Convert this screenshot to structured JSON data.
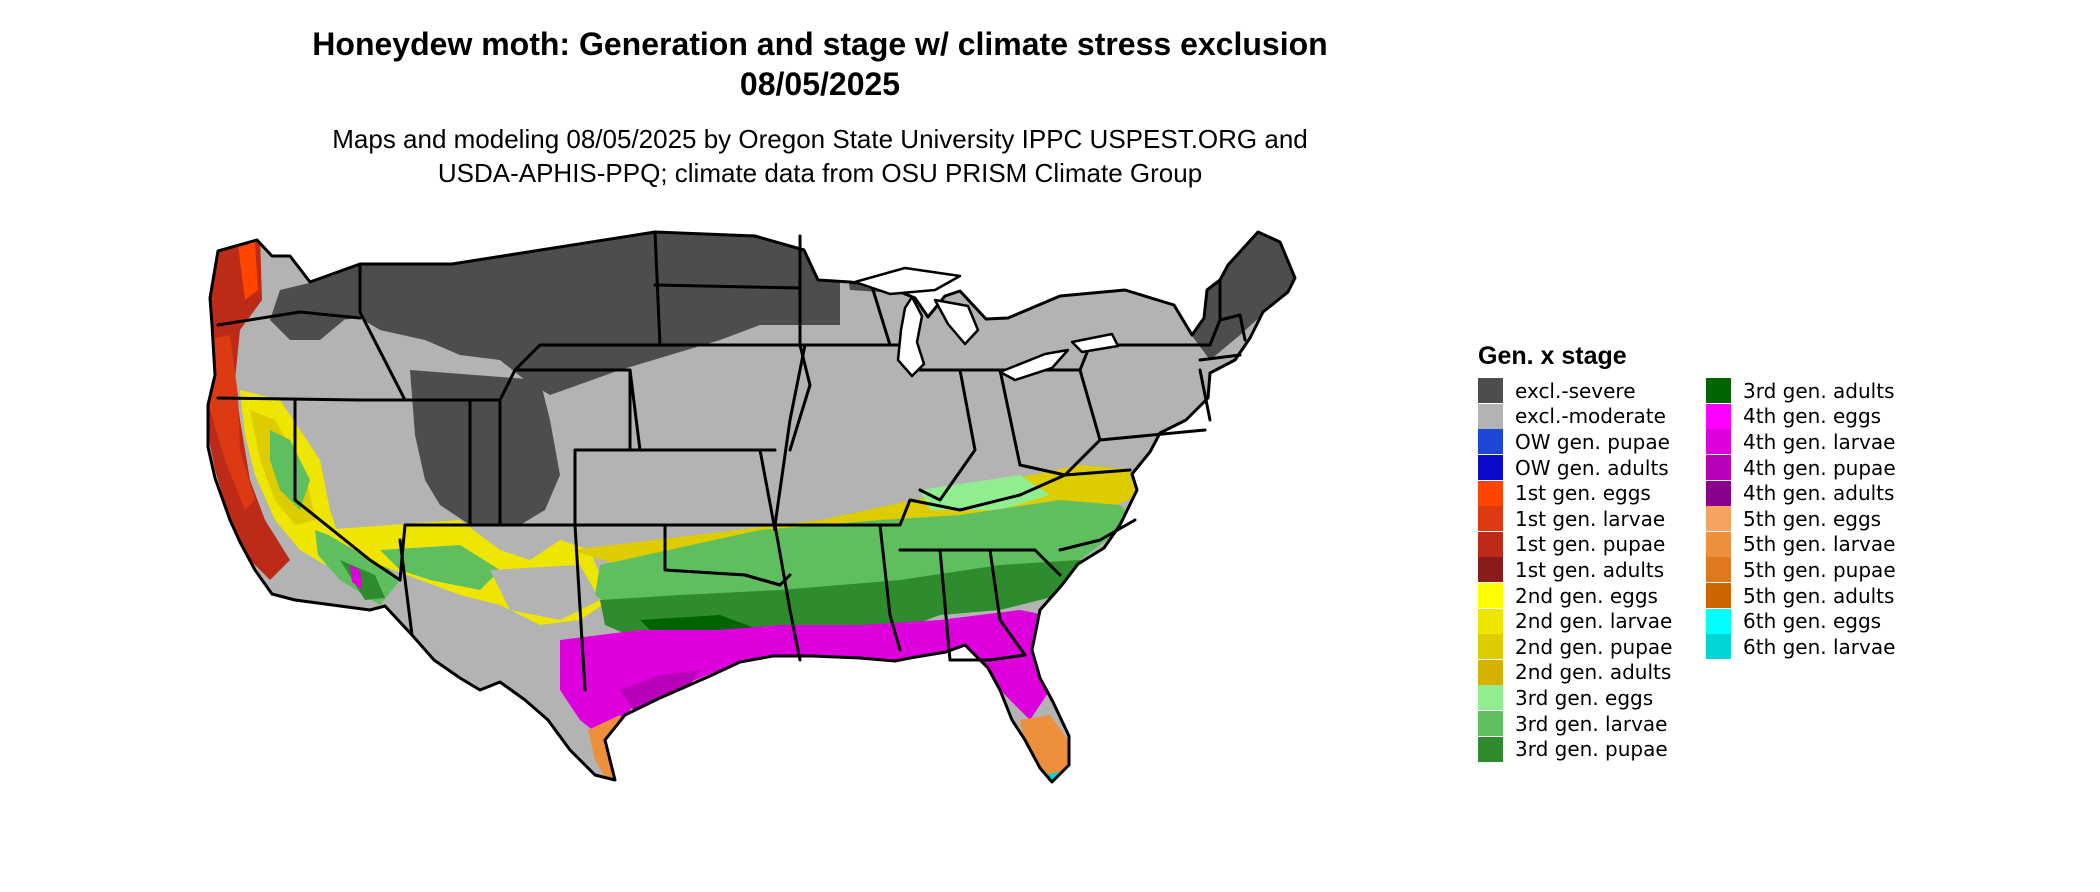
{
  "header": {
    "title_line1": "Honeydew moth: Generation and stage w/ climate stress exclusion",
    "title_line2": "08/05/2025",
    "subtitle_line1": "Maps and modeling 08/05/2025 by Oregon State University IPPC USPEST.ORG and",
    "subtitle_line2": "USDA-APHIS-PPQ; climate data from OSU PRISM Climate Group"
  },
  "legend": {
    "title": "Gen. x stage",
    "items": [
      {
        "label": "excl.-severe",
        "color": "#4d4d4d"
      },
      {
        "label": "excl.-moderate",
        "color": "#b3b3b3"
      },
      {
        "label": "OW gen. pupae",
        "color": "#1f47d6"
      },
      {
        "label": "OW gen. adults",
        "color": "#0a0ac8"
      },
      {
        "label": "1st gen. eggs",
        "color": "#ff4500"
      },
      {
        "label": "1st gen. larvae",
        "color": "#dc3a12"
      },
      {
        "label": "1st gen. pupae",
        "color": "#bd2a18"
      },
      {
        "label": "1st gen. adults",
        "color": "#8b1a1a"
      },
      {
        "label": "2nd gen. eggs",
        "color": "#ffff00"
      },
      {
        "label": "2nd gen. larvae",
        "color": "#eee600"
      },
      {
        "label": "2nd gen. pupae",
        "color": "#ddcc00"
      },
      {
        "label": "2nd gen. adults",
        "color": "#d4b000"
      },
      {
        "label": "3rd gen. eggs",
        "color": "#90ee90"
      },
      {
        "label": "3rd gen. larvae",
        "color": "#5fbf5f"
      },
      {
        "label": "3rd gen. pupae",
        "color": "#2e8b2e"
      },
      {
        "label": "3rd gen. adults",
        "color": "#006400"
      },
      {
        "label": "4th gen. eggs",
        "color": "#ff00ff"
      },
      {
        "label": "4th gen. larvae",
        "color": "#dd00dd"
      },
      {
        "label": "4th gen. pupae",
        "color": "#b800b8"
      },
      {
        "label": "4th gen. adults",
        "color": "#8b008b"
      },
      {
        "label": "5th gen. eggs",
        "color": "#f4a460"
      },
      {
        "label": "5th gen. larvae",
        "color": "#ee8f3c"
      },
      {
        "label": "5th gen. pupae",
        "color": "#e07820"
      },
      {
        "label": "5th gen. adults",
        "color": "#cd6600"
      },
      {
        "label": "6th gen. eggs",
        "color": "#00ffff"
      },
      {
        "label": "6th gen. larvae",
        "color": "#00d5d5"
      }
    ]
  }
}
